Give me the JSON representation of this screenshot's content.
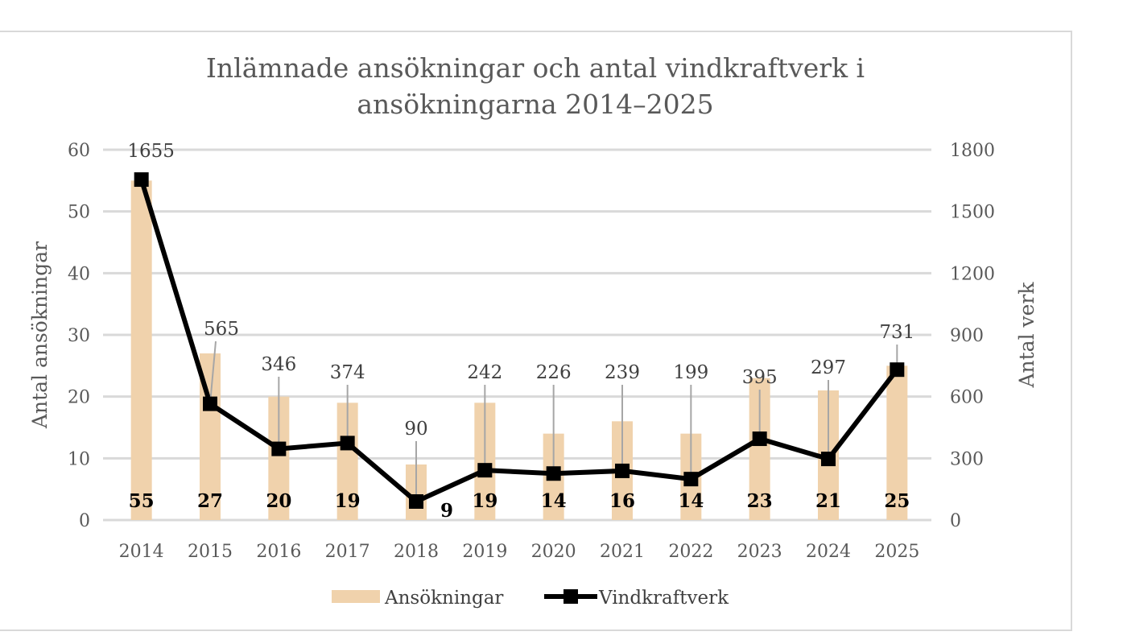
{
  "chart_data": {
    "type": "bar+line",
    "title_line1": "Inlämnade ansökningar och antal vindkraftverk i",
    "title_line2": "ansökningarna 2014–2025",
    "categories": [
      "2014",
      "2015",
      "2016",
      "2017",
      "2018",
      "2019",
      "2020",
      "2021",
      "2022",
      "2023",
      "2024",
      "2025"
    ],
    "series": [
      {
        "name": "Ansökningar",
        "type": "bar",
        "axis": "left",
        "color": "#f0d2ac",
        "values": [
          55,
          27,
          20,
          19,
          9,
          19,
          14,
          16,
          14,
          23,
          21,
          25
        ]
      },
      {
        "name": "Vindkraftverk",
        "type": "line",
        "axis": "right",
        "color": "#000000",
        "values": [
          1655,
          565,
          346,
          374,
          90,
          242,
          226,
          239,
          199,
          395,
          297,
          731
        ]
      }
    ],
    "y_left": {
      "label": "Antal ansökningar",
      "range": [
        0,
        60
      ],
      "ticks": [
        "0",
        "10",
        "20",
        "30",
        "40",
        "50",
        "60"
      ]
    },
    "y_right": {
      "label": "Antal verk",
      "range": [
        0,
        1800
      ],
      "ticks": [
        "0",
        "300",
        "600",
        "900",
        "1200",
        "1500",
        "1800"
      ]
    },
    "grid": true,
    "legend_position": "bottom"
  }
}
